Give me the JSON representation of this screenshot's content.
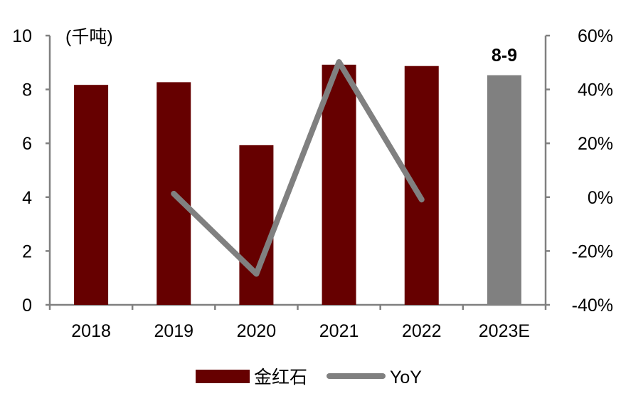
{
  "chart_data": {
    "type": "bar",
    "categories": [
      "2018",
      "2019",
      "2020",
      "2021",
      "2022",
      "2023E"
    ],
    "unit_label": "(千吨)",
    "series": [
      {
        "name": "金红石",
        "type": "bar",
        "axis": "left",
        "values": [
          8.17,
          8.27,
          5.93,
          8.92,
          8.87,
          8.53
        ],
        "colors": [
          "#660000",
          "#660000",
          "#660000",
          "#660000",
          "#660000",
          "#808080"
        ]
      },
      {
        "name": "YoY",
        "type": "line",
        "axis": "right",
        "values": [
          null,
          1.3,
          -28.5,
          50.2,
          -0.9,
          null
        ],
        "color": "#808080"
      }
    ],
    "annotations": [
      {
        "category": "2023E",
        "text": "8-9"
      }
    ],
    "ylim": [
      0,
      10
    ],
    "yticks": [
      "0",
      "2",
      "4",
      "6",
      "8",
      "10"
    ],
    "y2lim": [
      -40,
      60
    ],
    "y2ticks": [
      "-40%",
      "-20%",
      "0%",
      "20%",
      "40%",
      "60%"
    ],
    "grid": false,
    "legend": "bottom"
  }
}
